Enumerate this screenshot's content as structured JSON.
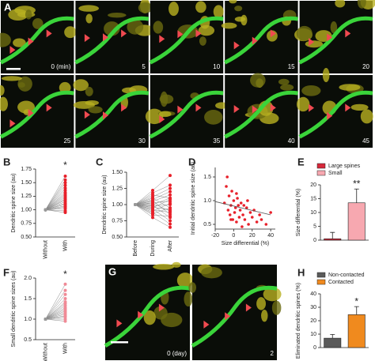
{
  "figure": {
    "a": {
      "label": "A",
      "times": [
        "0 (min)",
        "5",
        "10",
        "15",
        "20",
        "25",
        "30",
        "35",
        "40",
        "45"
      ]
    },
    "g": {
      "label": "G",
      "times": [
        "0 (day)",
        "2"
      ]
    }
  },
  "chart_data": [
    {
      "type": "paired",
      "label": "B",
      "ylabel": "Dendritic spine size (au)",
      "categories": [
        "Without",
        "With"
      ],
      "pairs": [
        [
          1,
          1.62
        ],
        [
          1,
          1.55
        ],
        [
          1,
          1.5
        ],
        [
          1,
          1.45
        ],
        [
          1,
          1.4
        ],
        [
          1,
          1.36
        ],
        [
          1,
          1.32
        ],
        [
          1,
          1.29
        ],
        [
          1,
          1.26
        ],
        [
          1,
          1.23
        ],
        [
          1,
          1.2
        ],
        [
          1,
          1.18
        ],
        [
          1,
          1.15
        ],
        [
          1,
          1.12
        ],
        [
          1,
          1.1
        ],
        [
          1,
          1.07
        ],
        [
          1,
          1.05
        ],
        [
          1,
          1.02
        ],
        [
          1,
          0.98
        ],
        [
          1,
          0.95
        ]
      ],
      "colors": [
        "#999999",
        "#e8202a"
      ],
      "annotation": "*",
      "ylim": [
        0.5,
        1.75
      ],
      "yticks": [
        {
          "value": 0.5,
          "label": "0.50"
        },
        {
          "value": 0.75,
          "label": "0.75"
        },
        {
          "value": 1,
          "label": "1.00"
        },
        1.25,
        {
          "value": 1.5,
          "label": "1.50"
        },
        1.75
      ]
    },
    {
      "type": "paired",
      "label": "C",
      "ylabel": "Dendritic spine size (au)",
      "categories": [
        "Before",
        "During",
        "After"
      ],
      "pairs": [
        [
          1,
          1.22,
          1.45
        ],
        [
          1,
          1.18,
          1.3
        ],
        [
          1,
          1.15,
          1.1
        ],
        [
          1,
          1.12,
          1.25
        ],
        [
          1,
          1.1,
          0.95
        ],
        [
          1,
          1.08,
          1.2
        ],
        [
          1,
          1.06,
          0.85
        ],
        [
          1,
          1.05,
          1.15
        ],
        [
          1,
          1.03,
          1.05
        ],
        [
          1,
          1.02,
          0.9
        ],
        [
          1,
          1.0,
          1.1
        ],
        [
          1,
          0.99,
          0.8
        ],
        [
          1,
          0.98,
          1.0
        ],
        [
          1,
          0.96,
          0.92
        ],
        [
          1,
          0.95,
          1.08
        ],
        [
          1,
          0.93,
          0.75
        ],
        [
          1,
          0.92,
          0.88
        ],
        [
          1,
          0.9,
          1.02
        ],
        [
          1,
          0.88,
          0.7
        ],
        [
          1,
          0.86,
          0.95
        ],
        [
          1,
          0.84,
          0.82
        ],
        [
          1,
          0.8,
          0.65
        ]
      ],
      "colors": [
        "#999999",
        "#e8202a",
        "#e8202a"
      ],
      "ylim": [
        0.5,
        1.5
      ],
      "yticks": [
        {
          "value": 0.5,
          "label": "0.50"
        },
        {
          "value": 0.75,
          "label": "0.75"
        },
        {
          "value": 1,
          "label": "1.00"
        },
        1.25,
        {
          "value": 1.5,
          "label": "1.50"
        }
      ]
    },
    {
      "type": "scatter",
      "label": "D",
      "ylabel": "Initial dendritic spine size (au)",
      "xlabel": "Size differential (%)",
      "color": "#e8202a",
      "x": [
        -10,
        -8,
        -6,
        -5,
        -4,
        -3,
        -2,
        -1,
        0,
        1,
        2,
        3,
        4,
        5,
        6,
        7,
        8,
        10,
        12,
        14,
        15,
        16,
        18,
        20,
        22,
        25,
        28,
        30,
        35,
        40,
        -7,
        3,
        9,
        11,
        -3
      ],
      "y": [
        0.95,
        1.3,
        0.8,
        1.1,
        0.7,
        0.9,
        1.2,
        0.6,
        1.0,
        0.75,
        0.85,
        0.55,
        1.05,
        0.9,
        0.65,
        0.8,
        0.95,
        0.7,
        0.6,
        0.85,
        1.0,
        0.5,
        0.75,
        0.65,
        0.8,
        0.55,
        0.7,
        0.6,
        0.5,
        0.75,
        1.5,
        1.15,
        0.45,
        0.9,
        0.6
      ],
      "fit": {
        "x": [
          -20,
          40
        ],
        "y": [
          0.98,
          0.7
        ]
      },
      "xlim": [
        -20,
        45
      ],
      "xticks": [
        -20,
        0,
        20,
        40
      ],
      "ylim": [
        0.4,
        1.7
      ],
      "yticks": [
        0.5,
        {
          "value": 1,
          "label": "1.0"
        },
        1.5
      ]
    },
    {
      "type": "bar",
      "label": "E",
      "ylabel": "Size differential (%)",
      "categories": [
        "Large spines",
        "Small"
      ],
      "values": [
        0.5,
        13.5
      ],
      "errors": [
        2.3,
        5
      ],
      "colors": [
        "#d6283a",
        "#f7a8b0"
      ],
      "annotation": "**",
      "ylim": [
        0,
        20
      ],
      "yticks": [
        0,
        5,
        10,
        15,
        20
      ]
    },
    {
      "type": "paired",
      "label": "F",
      "ylabel": "Small dendritic spine sizes (au)",
      "categories": [
        "Without",
        "With"
      ],
      "pairs": [
        [
          1,
          1.85
        ],
        [
          1,
          1.7
        ],
        [
          1,
          1.6
        ],
        [
          1,
          1.5
        ],
        [
          1,
          1.42
        ],
        [
          1,
          1.38
        ],
        [
          1,
          1.33
        ],
        [
          1,
          1.28
        ],
        [
          1,
          1.24
        ],
        [
          1,
          1.2
        ],
        [
          1,
          1.16
        ],
        [
          1,
          1.12
        ],
        [
          1,
          1.08
        ],
        [
          1,
          1.05
        ],
        [
          1,
          1.0
        ],
        [
          1,
          0.95
        ]
      ],
      "colors": [
        "#999999",
        "#f08a96"
      ],
      "annotation": "*",
      "ylim": [
        0.5,
        2
      ],
      "yticks": [
        0.5,
        {
          "value": 1,
          "label": "1.0"
        },
        1.5,
        {
          "value": 2,
          "label": "2.0"
        }
      ]
    },
    {
      "type": "bar",
      "label": "H",
      "ylabel": "Eliminated dendritic spines (%)",
      "categories": [
        "Non-contacted",
        "Contacted"
      ],
      "values": [
        7,
        24.5
      ],
      "errors": [
        2.8,
        6
      ],
      "colors": [
        "#5a5a5a",
        "#f08a1e"
      ],
      "annotation": "*",
      "ylim": [
        0,
        40
      ],
      "yticks": [
        0,
        10,
        20,
        30,
        40
      ]
    }
  ]
}
